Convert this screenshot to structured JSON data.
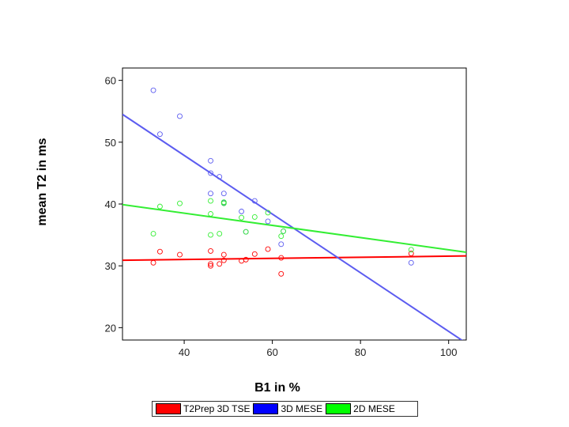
{
  "chart_data": {
    "type": "scatter",
    "title": "",
    "xlabel": "B1 in %",
    "ylabel": "mean T2 in ms",
    "xlim": [
      26,
      104
    ],
    "ylim": [
      18,
      62
    ],
    "xticks": [
      40,
      60,
      80,
      100
    ],
    "yticks": [
      20,
      30,
      40,
      50,
      60
    ],
    "grid": false,
    "legend_position": "bottom",
    "series": [
      {
        "name": "T2Prep 3D TSE",
        "color": "#ff0000",
        "legend_color": "#ff0000",
        "points": [
          [
            33,
            30.5
          ],
          [
            34.5,
            32.3
          ],
          [
            39,
            31.8
          ],
          [
            46,
            32.4
          ],
          [
            46,
            30.3
          ],
          [
            46,
            30.0
          ],
          [
            48,
            30.3
          ],
          [
            49,
            31.8
          ],
          [
            49,
            30.9
          ],
          [
            53,
            30.8
          ],
          [
            54,
            31.0
          ],
          [
            56,
            31.9
          ],
          [
            59,
            32.7
          ],
          [
            62,
            28.7
          ],
          [
            62,
            31.3
          ],
          [
            91.5,
            32.0
          ]
        ],
        "fit": [
          [
            26,
            30.9
          ],
          [
            104,
            31.6
          ]
        ]
      },
      {
        "name": "3D MESE",
        "color": "#5c5cf0",
        "legend_color": "#0000ff",
        "points": [
          [
            33,
            58.4
          ],
          [
            34.5,
            51.3
          ],
          [
            39,
            54.2
          ],
          [
            46,
            47.0
          ],
          [
            46,
            45.0
          ],
          [
            46,
            41.7
          ],
          [
            48,
            44.4
          ],
          [
            49,
            41.7
          ],
          [
            49,
            40.2
          ],
          [
            53,
            38.8
          ],
          [
            54,
            35.5
          ],
          [
            56,
            40.5
          ],
          [
            59,
            37.2
          ],
          [
            62,
            33.5
          ],
          [
            62.5,
            35.6
          ],
          [
            91.5,
            30.5
          ]
        ],
        "fit": [
          [
            26,
            54.5
          ],
          [
            104,
            17.5
          ]
        ]
      },
      {
        "name": "2D MESE",
        "color": "#33ee33",
        "legend_color": "#00ff00",
        "points": [
          [
            33,
            35.2
          ],
          [
            34.5,
            39.6
          ],
          [
            39,
            40.1
          ],
          [
            46,
            40.5
          ],
          [
            46,
            38.4
          ],
          [
            46,
            35.0
          ],
          [
            48,
            35.2
          ],
          [
            49,
            40.3
          ],
          [
            49,
            40.1
          ],
          [
            53,
            37.8
          ],
          [
            54,
            35.5
          ],
          [
            56,
            37.9
          ],
          [
            59,
            38.6
          ],
          [
            62,
            34.8
          ],
          [
            62.5,
            35.6
          ],
          [
            91.5,
            32.6
          ]
        ],
        "fit": [
          [
            26,
            39.9
          ],
          [
            104,
            32.2
          ]
        ]
      }
    ]
  }
}
